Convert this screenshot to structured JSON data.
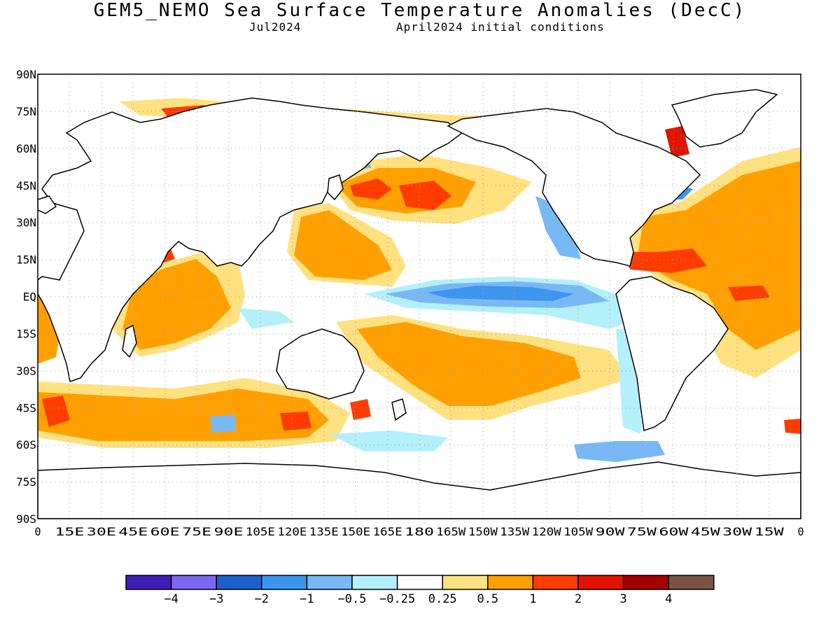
{
  "title": "GEM5_NEMO Sea Surface Temperature Anomalies (DecC)",
  "valid_month": "Jul2024",
  "init_conditions": "April2024 initial conditions",
  "lat_ticks": [
    "90N",
    "75N",
    "60N",
    "45N",
    "30N",
    "15N",
    "EQ",
    "15S",
    "30S",
    "45S",
    "60S",
    "75S",
    "90S"
  ],
  "lon_ticks": [
    "0",
    "15E",
    "30E",
    "45E",
    "60E",
    "75E",
    "90E",
    "105E",
    "120E",
    "135E",
    "150E",
    "165E",
    "180",
    "165W",
    "150W",
    "135W",
    "120W",
    "105W",
    "90W",
    "75W",
    "60W",
    "45W",
    "30W",
    "15W",
    "0"
  ],
  "colorbar": {
    "colors": [
      "#3b1fb4",
      "#7b68ee",
      "#1e5fcc",
      "#3c96f0",
      "#78b9f5",
      "#b4f0fa",
      "#ffffff",
      "#ffe180",
      "#ffa000",
      "#ff3c00",
      "#e11400",
      "#a50000",
      "#7a5246"
    ],
    "labels": [
      "-4",
      "-3",
      "-2",
      "-1",
      "-0.5",
      "-0.25",
      "0.25",
      "0.5",
      "1",
      "2",
      "3",
      "4"
    ]
  },
  "colors": {
    "land": "#ffffff",
    "coast": "#000000",
    "grid": "#9a9a9a"
  }
}
